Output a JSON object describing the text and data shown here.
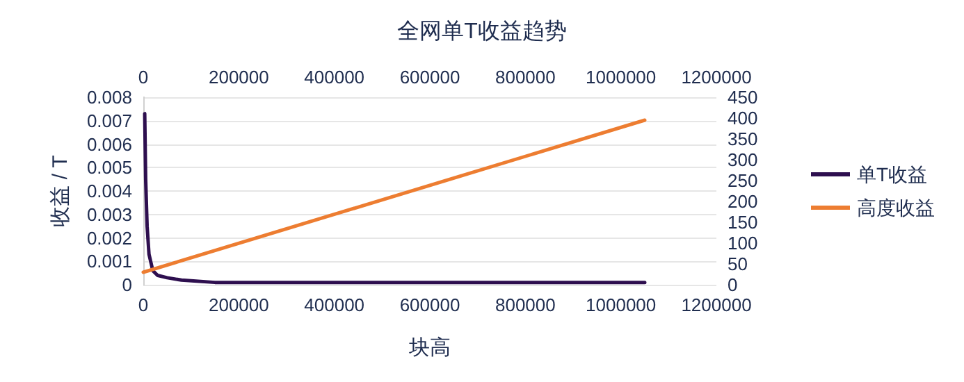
{
  "chart_data": {
    "type": "line",
    "title": "全网单T收益趋势",
    "xlabel": "块高",
    "ylabel": "收益 / T",
    "xlim": [
      0,
      1200000
    ],
    "xticks": [
      0,
      200000,
      400000,
      600000,
      800000,
      1000000,
      1200000
    ],
    "x2lim": [
      0,
      1200000
    ],
    "x2ticks": [
      0,
      200000,
      400000,
      600000,
      800000,
      1000000,
      1200000
    ],
    "ylim": [
      0,
      0.008
    ],
    "yticks": [
      0,
      0.001,
      0.002,
      0.003,
      0.004,
      0.005,
      0.006,
      0.007,
      0.008
    ],
    "y2lim": [
      0,
      450
    ],
    "y2ticks": [
      0,
      50,
      100,
      150,
      200,
      250,
      300,
      350,
      400,
      450
    ],
    "grid": "y",
    "legend": "right",
    "marker": "none",
    "line_style": "solid",
    "series": [
      {
        "name": "单T收益",
        "color": "#2e0f4f",
        "x": [
          3000,
          5000,
          8000,
          12000,
          20000,
          30000,
          50000,
          80000,
          150000,
          300000,
          600000,
          1050000
        ],
        "values": [
          0.0073,
          0.0045,
          0.0025,
          0.0013,
          0.0006,
          0.0004,
          0.0003,
          0.0002,
          0.0001,
          0.0001,
          0.0001,
          0.0001
        ]
      },
      {
        "name": "高度收益",
        "color": "#ed7d31",
        "axis": "y2",
        "x": [
          0,
          1050000
        ],
        "values": [
          30,
          395
        ]
      }
    ]
  }
}
